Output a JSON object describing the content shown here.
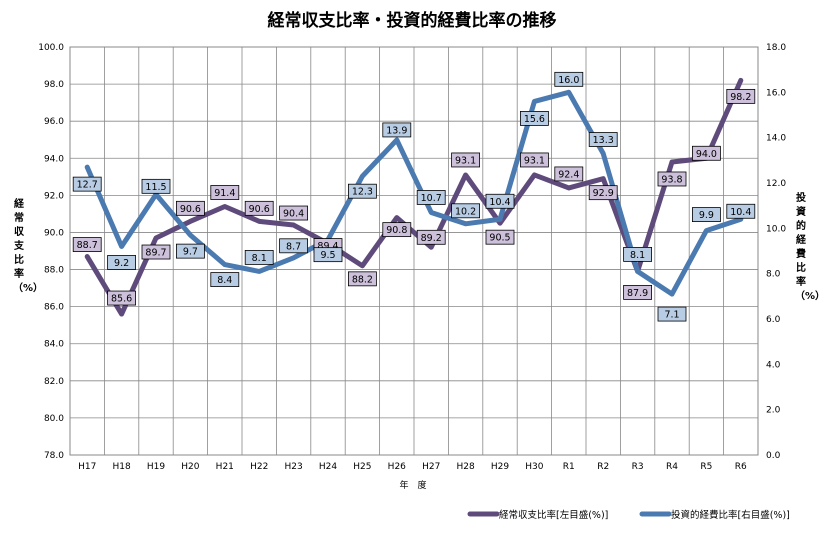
{
  "chart_data": {
    "type": "line",
    "title": "経常収支比率・投資的経費比率の推移",
    "xlabel": "年　度",
    "ylabel_left": "経常収支比率（%）",
    "ylabel_right": "投資的経費比率（%）",
    "categories": [
      "H17",
      "H18",
      "H19",
      "H20",
      "H21",
      "H22",
      "H23",
      "H24",
      "H25",
      "H26",
      "H27",
      "H28",
      "H29",
      "H30",
      "R1",
      "R2",
      "R3",
      "R4",
      "R5",
      "R6"
    ],
    "ylim_left": [
      78,
      100
    ],
    "yticks_left": [
      "78.0",
      "80.0",
      "82.0",
      "84.0",
      "86.0",
      "88.0",
      "90.0",
      "92.0",
      "94.0",
      "96.0",
      "98.0",
      "100.0"
    ],
    "ylim_right": [
      0,
      18
    ],
    "yticks_right": [
      "0.0",
      "2.0",
      "4.0",
      "6.0",
      "8.0",
      "10.0",
      "12.0",
      "14.0",
      "16.0",
      "18.0"
    ],
    "grid": true,
    "legend_placement": "bottom-right",
    "series": [
      {
        "name": "経常収支比率[左目盛(%)]",
        "axis": "left",
        "color": "#5f4b7b",
        "label_bg": "#ccc0da",
        "values": [
          88.7,
          85.6,
          89.7,
          90.6,
          91.4,
          90.6,
          90.4,
          89.4,
          88.2,
          90.8,
          89.2,
          93.1,
          90.5,
          93.1,
          92.4,
          92.9,
          87.9,
          93.8,
          94.0,
          98.2
        ],
        "labels": [
          "88.7",
          "85.6",
          "89.7",
          "90.6",
          "91.4",
          "90.6",
          "90.4",
          "89.4",
          "88.2",
          "90.8",
          "89.2",
          "93.1",
          "90.5",
          "93.1",
          "92.4",
          "92.9",
          "87.9",
          "93.8",
          "94.0",
          "98.2"
        ]
      },
      {
        "name": "投資的経費比率[右目盛(%)]",
        "axis": "right",
        "color": "#4a7ab0",
        "label_bg": "#b8cce4",
        "values": [
          12.7,
          9.2,
          11.5,
          9.7,
          8.4,
          8.1,
          8.7,
          9.5,
          12.3,
          13.9,
          10.7,
          10.2,
          10.4,
          15.6,
          16.0,
          13.3,
          8.1,
          7.1,
          9.9,
          10.4
        ],
        "labels": [
          "12.7",
          "9.2",
          "11.5",
          "9.7",
          "8.4",
          "8.1",
          "8.7",
          "9.5",
          "12.3",
          "13.9",
          "10.7",
          "10.2",
          "10.4",
          "15.6",
          "16.0",
          "13.3",
          "8.1",
          "7.1",
          "9.9",
          "10.4"
        ]
      }
    ]
  }
}
